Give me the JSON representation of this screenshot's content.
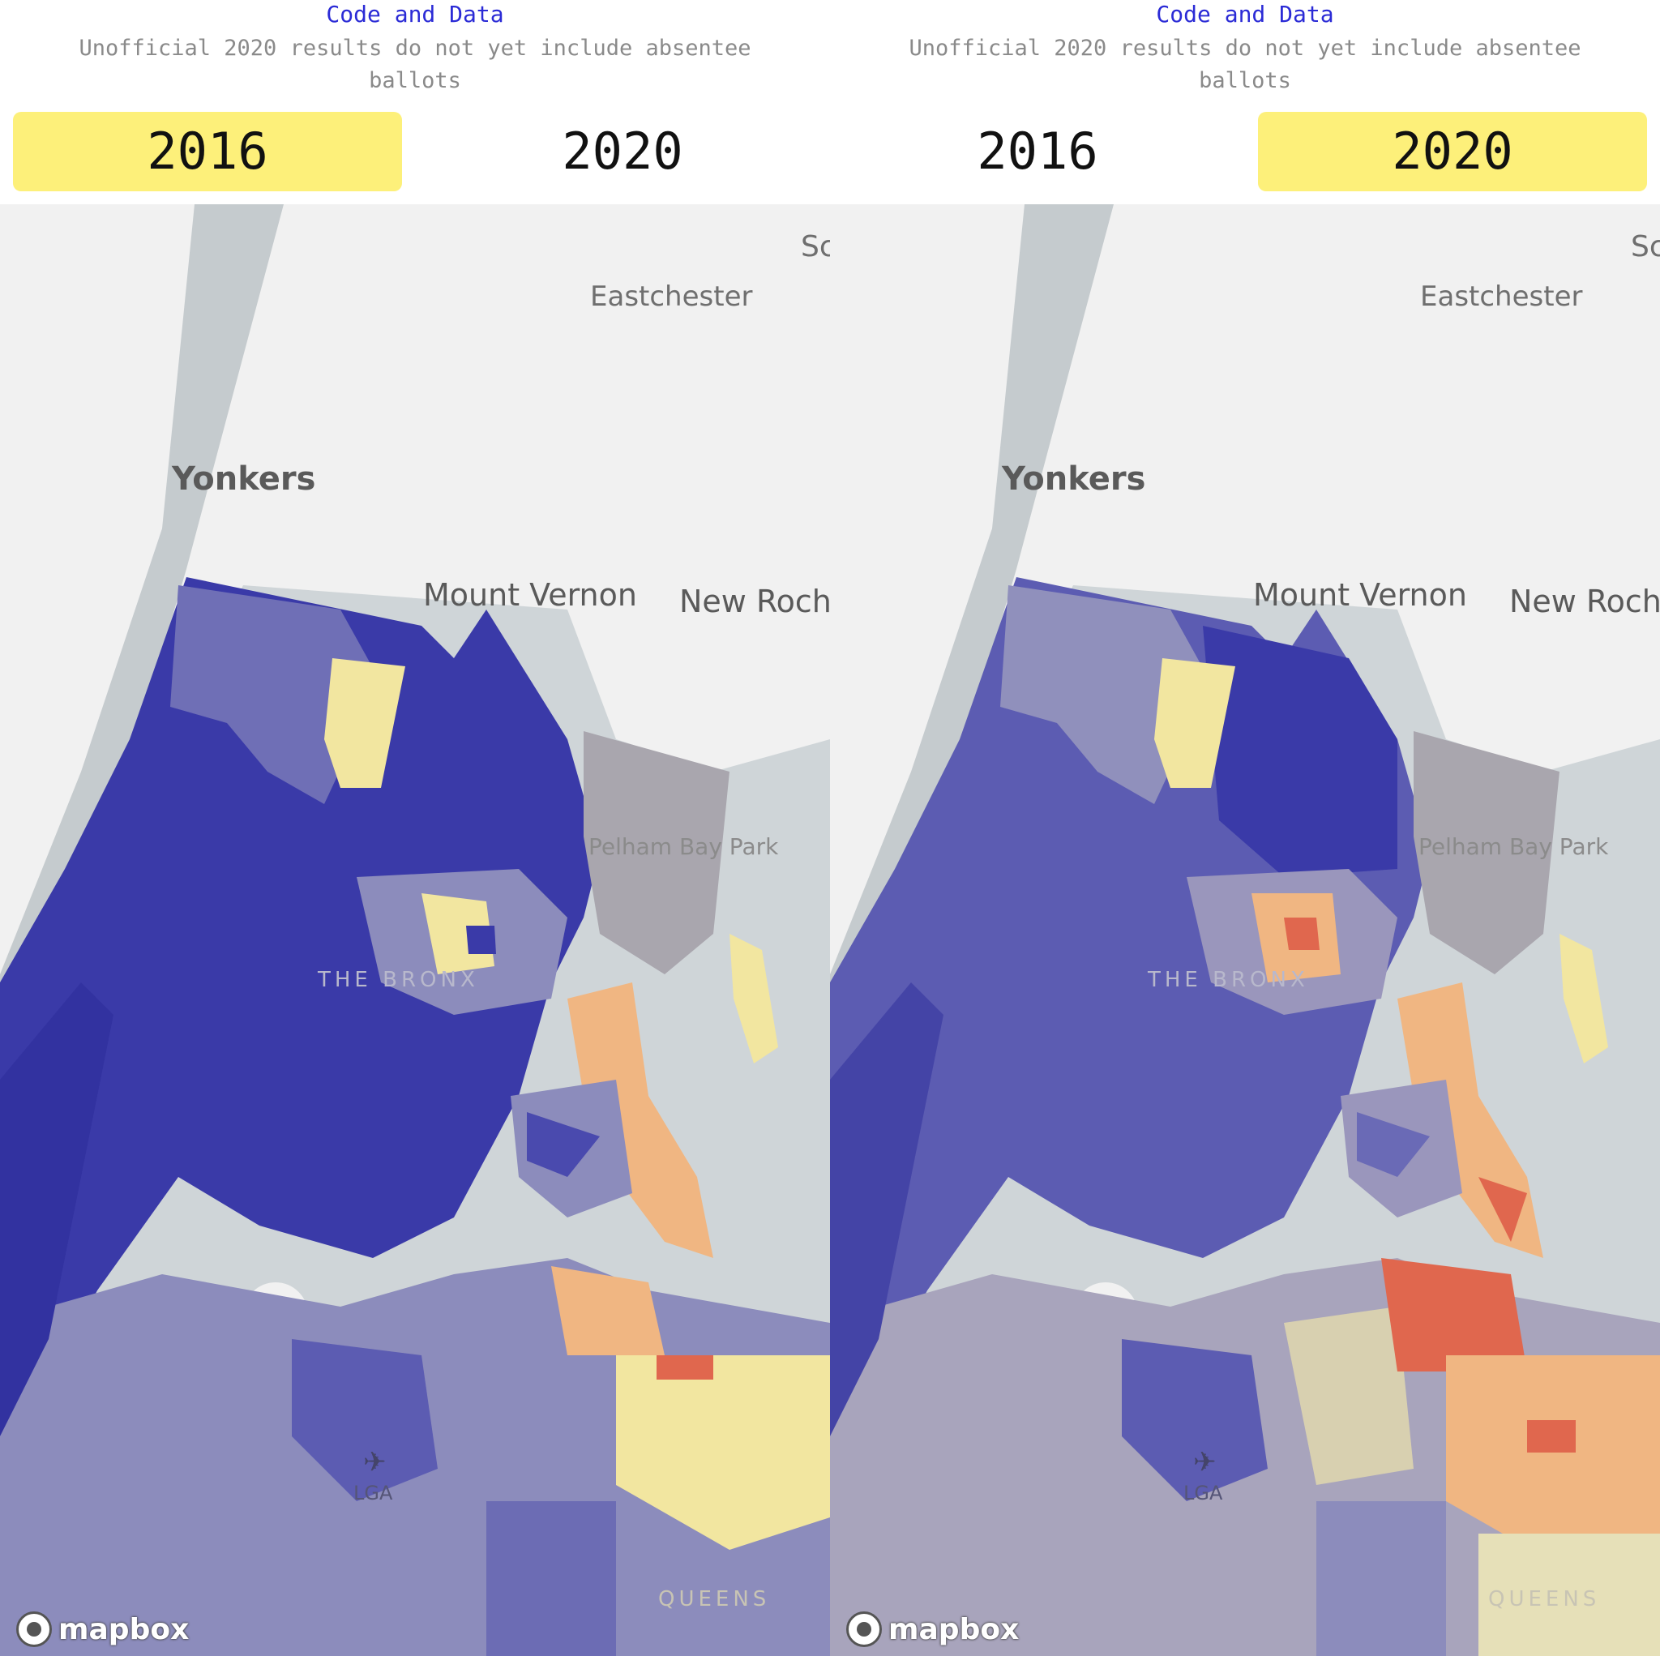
{
  "header": {
    "code_link": "Code and Data",
    "notice": "Unofficial 2020 results do not yet include absentee ballots"
  },
  "year_tabs": {
    "year_2016": "2016",
    "year_2020": "2020"
  },
  "panels": [
    {
      "selected_year": "2016"
    },
    {
      "selected_year": "2020"
    }
  ],
  "map": {
    "labels": {
      "yonkers": "Yonkers",
      "eastchester": "Eastchester",
      "mount_vernon": "Mount Vernon",
      "new_rochelle": "New Roche",
      "scarsdale_partial": "Sc",
      "pelham_bay_park": "Pelham Bay Park",
      "the_bronx": "THE BRONX",
      "lga": "LGA",
      "queens": "QUEENS"
    },
    "attribution": "mapbox",
    "colors": {
      "water": "#cfd5d8",
      "land": "#f1f1f1",
      "dem_strong": "#3a3aa8",
      "dem_medium": "#5c5cb2",
      "dem_light": "#8c8cbc",
      "neutral": "#b8b4c0",
      "rep_light": "#f2e6a0",
      "rep_medium": "#f0b682",
      "rep_strong": "#e0674e",
      "park": "#a9a6ae"
    }
  }
}
